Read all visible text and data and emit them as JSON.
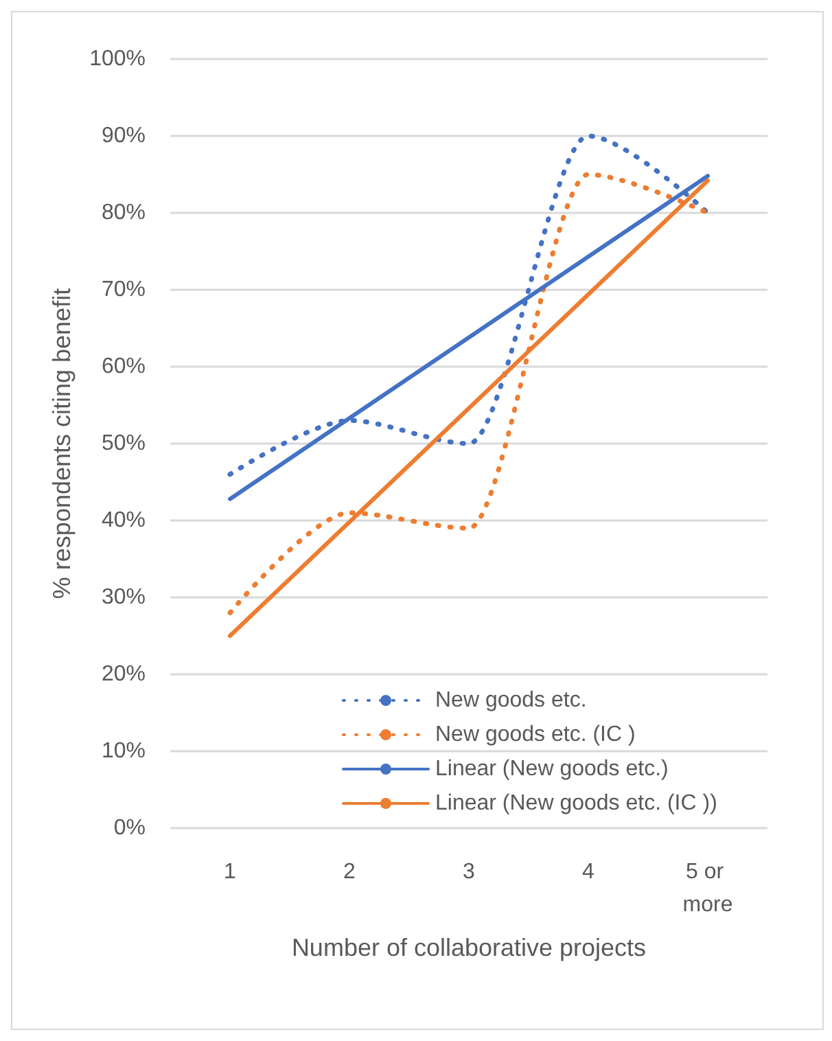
{
  "chart_data": {
    "type": "line",
    "xlabel": "Number of collaborative projects",
    "ylabel": "% respondents citing benefit",
    "categories": [
      "1",
      "2",
      "3",
      "4",
      "5 or more"
    ],
    "series": [
      {
        "name": "New goods etc.",
        "color": "#4472c4",
        "line_style": "dotted",
        "values": [
          46,
          53,
          50,
          90,
          80
        ]
      },
      {
        "name": "New goods etc. (IC )",
        "color": "#ed7d31",
        "line_style": "dotted",
        "values": [
          28,
          41,
          39,
          85,
          80
        ]
      },
      {
        "name": "Linear (New goods etc.)",
        "color": "#4472c4",
        "line_style": "solid",
        "values": [
          42.8,
          53.3,
          63.8,
          74.3,
          84.8
        ]
      },
      {
        "name": "Linear (New goods etc. (IC ))",
        "color": "#ed7d31",
        "line_style": "solid",
        "values": [
          25,
          39.8,
          54.6,
          69.4,
          84.2
        ]
      }
    ],
    "ylim": [
      0,
      100
    ],
    "yticks": [
      {
        "value": 0,
        "label": "0%"
      },
      {
        "value": 10,
        "label": "10%"
      },
      {
        "value": 20,
        "label": "20%"
      },
      {
        "value": 30,
        "label": "30%"
      },
      {
        "value": 40,
        "label": "40%"
      },
      {
        "value": 50,
        "label": "50%"
      },
      {
        "value": 60,
        "label": "60%"
      },
      {
        "value": 70,
        "label": "70%"
      },
      {
        "value": 80,
        "label": "80%"
      },
      {
        "value": 90,
        "label": "90%"
      },
      {
        "value": 100,
        "label": "100%"
      }
    ],
    "grid": "y",
    "legend": "bottom",
    "marker": "none"
  }
}
